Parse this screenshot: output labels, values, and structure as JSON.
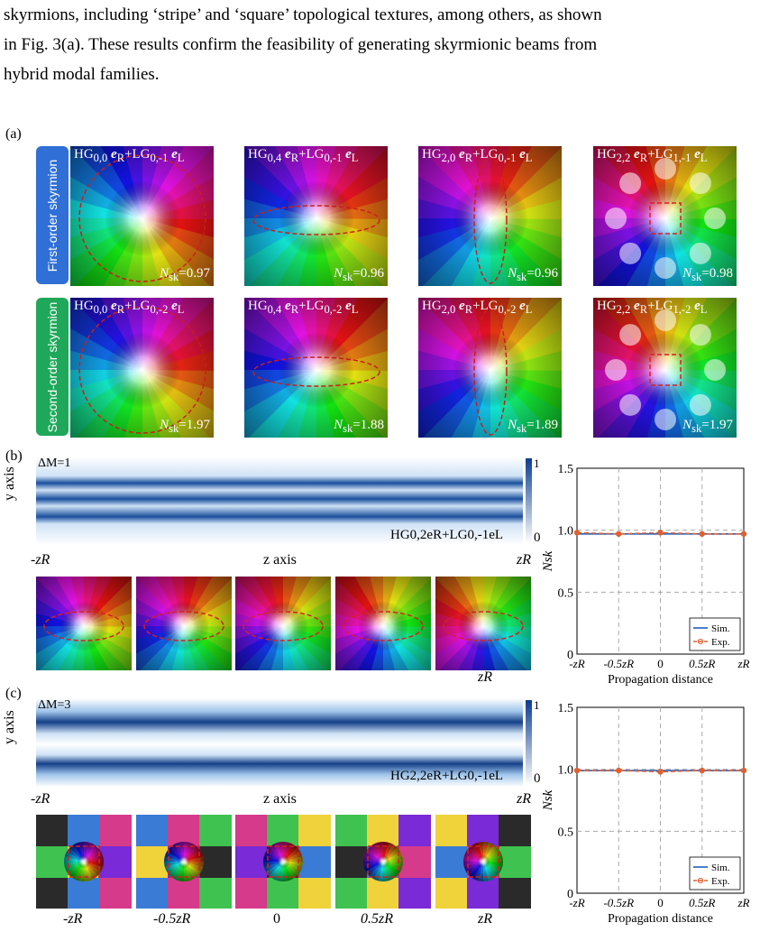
{
  "paragraph": {
    "lines": [
      "skyrmions, including ‘stripe’ and ‘square’ topological textures, among others, as shown",
      "in Fig. 3(a). These results confirm the feasibility of generating skyrmionic beams from",
      "hybrid modal families."
    ]
  },
  "panel_a": {
    "label": "(a)",
    "row1_label": "First-order skyrmion",
    "row2_label": "Second-order skyrmion",
    "row1_color": "#2f6fd6",
    "row2_color": "#1fa85a",
    "tiles": [
      {
        "title": "HG0,0 eR+LG0,-1 eL",
        "nsk": "Nsk=0.97"
      },
      {
        "title": "HG0,4 eR+LG0,-1 eL",
        "nsk": "Nsk=0.96"
      },
      {
        "title": "HG2,0 eR+LG0,-1 eL",
        "nsk": "Nsk=0.96"
      },
      {
        "title": "HG2,2 eR+LG1,-1 eL",
        "nsk": "Nsk=0.98"
      },
      {
        "title": "HG0,0 eR+LG0,-2 eL",
        "nsk": "Nsk=1.97"
      },
      {
        "title": "HG0,4 eR+LG0,-2 eL",
        "nsk": "Nsk=1.88"
      },
      {
        "title": "HG2,0 eR+LG0,-2 eL",
        "nsk": "Nsk=1.89"
      },
      {
        "title": "HG2,2 eR+LG1,-2 eL",
        "nsk": "Nsk=1.97"
      }
    ]
  },
  "panel_b": {
    "label": "(b)",
    "delta": "ΔM=1",
    "yaxis": "y axis",
    "zaxis": "z axis",
    "zleft": "-zR",
    "zright": "zR",
    "formula": "HG0,2eR+LG0,-1eL",
    "cbar_max": "1",
    "cbar_min": "0",
    "small_label": "zR"
  },
  "panel_c": {
    "label": "(c)",
    "delta": "ΔM=3",
    "yaxis": "y axis",
    "zaxis": "z axis",
    "zleft": "-zR",
    "zright": "zR",
    "formula": "HG2,2eR+LG0,-1eL",
    "cbar_max": "1",
    "cbar_min": "0",
    "small_labels": [
      "-zR",
      "-0.5zR",
      "0",
      "0.5zR",
      "zR"
    ]
  },
  "chart_data": [
    {
      "type": "line",
      "panel": "b",
      "x": [
        "-zR",
        "-0.5zR",
        "0",
        "0.5zR",
        "zR"
      ],
      "xlabel": "Propagation distance",
      "ylabel": "Nsk",
      "ylim": [
        0,
        1.5
      ],
      "yticks": [
        "0",
        "0.5",
        "1.0",
        "1.5"
      ],
      "grid": true,
      "legend": "bottom-right",
      "series": [
        {
          "name": "Sim.",
          "values": [
            0.97,
            0.97,
            0.97,
            0.97,
            0.97
          ],
          "color": "#1f5fbf"
        },
        {
          "name": "Exp.",
          "values": [
            0.98,
            0.97,
            0.98,
            0.97,
            0.97
          ],
          "color": "#e06030"
        }
      ]
    },
    {
      "type": "line",
      "panel": "c",
      "x": [
        "-zR",
        "-0.5zR",
        "0",
        "0.5zR",
        "zR"
      ],
      "xlabel": "Propagation distance",
      "ylabel": "Nsk",
      "ylim": [
        0,
        1.5
      ],
      "yticks": [
        "0",
        "0.5",
        "1.0",
        "1.5"
      ],
      "grid": true,
      "legend": "bottom-right",
      "series": [
        {
          "name": "Sim.",
          "values": [
            0.99,
            0.99,
            0.99,
            0.99,
            0.99
          ],
          "color": "#1f5fbf"
        },
        {
          "name": "Exp.",
          "values": [
            0.99,
            0.99,
            0.98,
            0.99,
            0.99
          ],
          "color": "#e06030"
        }
      ]
    }
  ]
}
